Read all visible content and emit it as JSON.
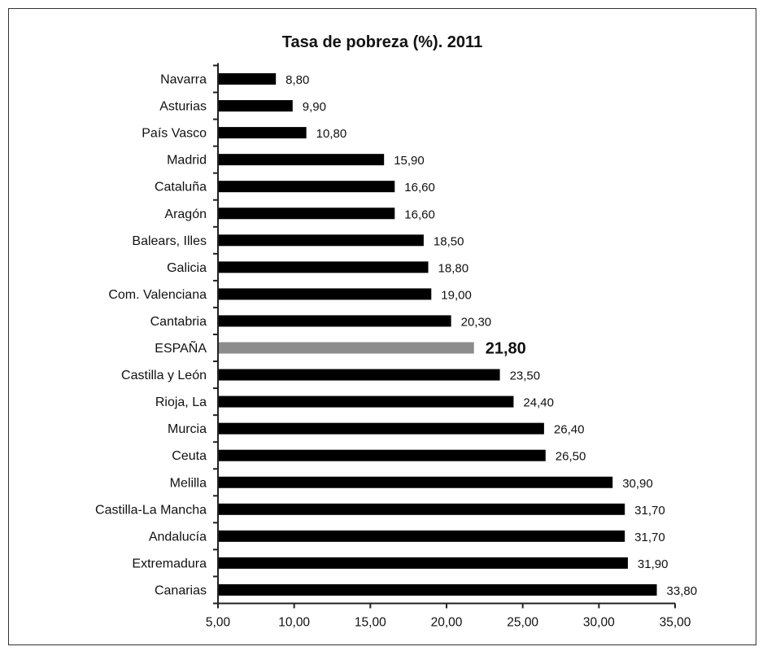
{
  "chart_data": {
    "type": "bar",
    "orientation": "horizontal",
    "title": "Tasa de pobreza (%). 2011",
    "xlabel": "",
    "ylabel": "",
    "xlim": [
      5,
      35
    ],
    "x_ticks": [
      "5,00",
      "10,00",
      "15,00",
      "20,00",
      "25,00",
      "30,00",
      "35,00"
    ],
    "grid": false,
    "legend": "none",
    "bar_color": "#000000",
    "highlight_color": "#8c8c8c",
    "highlight_category": "ESPAÑA",
    "categories": [
      "Navarra",
      "Asturias",
      "País Vasco",
      "Madrid",
      "Cataluña",
      "Aragón",
      "Balears, Illes",
      "Galicia",
      "Com. Valenciana",
      "Cantabria",
      "ESPAÑA",
      "Castilla y León",
      "Rioja, La",
      "Murcia",
      "Ceuta",
      "Melilla",
      "Castilla-La Mancha",
      "Andalucía",
      "Extremadura",
      "Canarias"
    ],
    "values": [
      8.8,
      9.9,
      10.8,
      15.9,
      16.6,
      16.6,
      18.5,
      18.8,
      19.0,
      20.3,
      21.8,
      23.5,
      24.4,
      26.4,
      26.5,
      30.9,
      31.7,
      31.7,
      31.9,
      33.8
    ],
    "value_labels": [
      "8,80",
      "9,90",
      "10,80",
      "15,90",
      "16,60",
      "16,60",
      "18,50",
      "18,80",
      "19,00",
      "20,30",
      "21,80",
      "23,50",
      "24,40",
      "26,40",
      "26,50",
      "30,90",
      "31,70",
      "31,70",
      "31,90",
      "33,80"
    ]
  }
}
